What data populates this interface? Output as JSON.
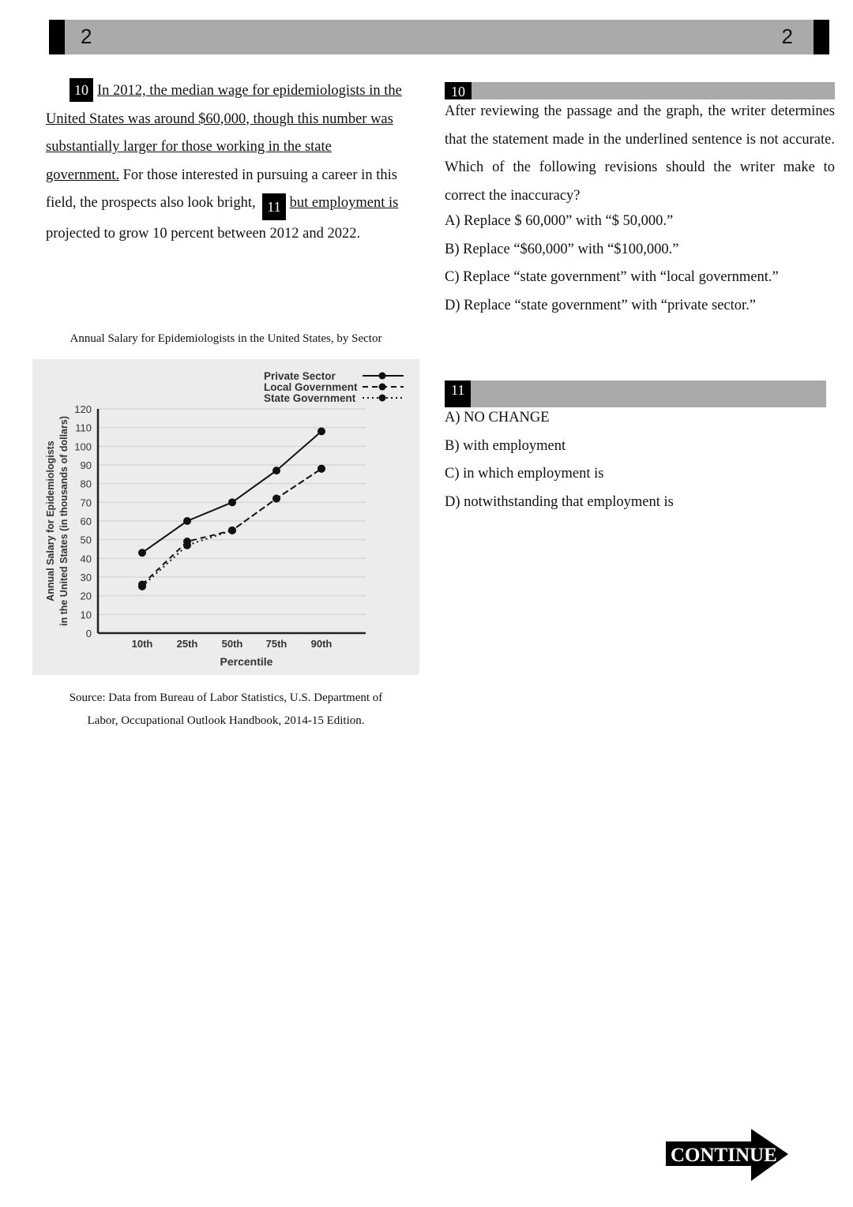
{
  "header": {
    "section_left": "2",
    "section_right": "2"
  },
  "passage": {
    "q10_num": "10",
    "underlined_1": "In 2012, the median wage for epidemiologists in the United States was around $60,000, though this number was substantially larger for those working in the state government.",
    "text_1": " For those interested in pursuing a career in this field, the prospects also look bright, ",
    "q11_num": "11",
    "underlined_2": "but employment is",
    "text_2": " projected to grow 10 percent between 2012 and 2022."
  },
  "chart_data": {
    "type": "line",
    "title": "Annual Salary for Epidemiologists in the United States, by Sector",
    "xlabel": "Percentile",
    "ylabel": [
      "Annual Salary for Epidemiologists",
      "in the United States (in thousands of dollars)"
    ],
    "categories": [
      "10th",
      "25th",
      "50th",
      "75th",
      "90th"
    ],
    "yticks": [
      0,
      10,
      20,
      30,
      40,
      50,
      60,
      70,
      80,
      90,
      100,
      110,
      120
    ],
    "ylim": [
      0,
      120
    ],
    "legend": "top-right",
    "series": [
      {
        "name": "Private Sector",
        "style": "solid",
        "values": [
          43,
          60,
          70,
          87,
          108
        ]
      },
      {
        "name": "Local Government",
        "style": "dashed",
        "values": [
          26,
          49,
          55,
          72,
          88
        ]
      },
      {
        "name": "State Government",
        "style": "dotted",
        "values": [
          25,
          47,
          55,
          72,
          88
        ]
      }
    ],
    "source_line1": "Source: Data from Bureau of Labor Statistics, U.S. Department of",
    "source_line2": "Labor, Occupational Outlook Handbook, 2014-15 Edition."
  },
  "q10": {
    "num": "10",
    "prompt": "After reviewing the passage and the graph, the writer determines that the statement made in the underlined sentence is not accurate. Which of the following revisions should the writer make to correct the inaccuracy?",
    "options": [
      "A)  Replace $ 60,000” with “$ 50,000.”",
      "B)  Replace “$60,000” with “$100,000.”",
      "C)  Replace “state government” with “local government.”",
      "D)  Replace “state government” with “private sector.”"
    ]
  },
  "q11": {
    "num": "11",
    "options": [
      "A)  NO CHANGE",
      "B)  with employment",
      "C)  in which employment is",
      "D)  notwithstanding that employment is"
    ]
  },
  "continue_label": "CONTINUE"
}
